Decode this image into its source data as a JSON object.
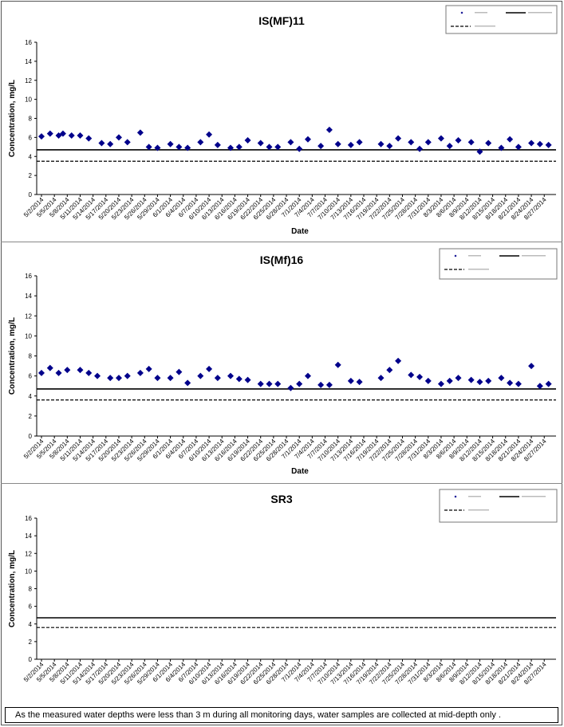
{
  "chart_data": [
    {
      "type": "scatter",
      "title": "IS(MF)11",
      "xlabel": "Date",
      "ylabel": "Concentration, mg/L",
      "ylim": [
        0,
        16
      ],
      "yticks": [
        0,
        2,
        4,
        6,
        8,
        10,
        12,
        14,
        16
      ],
      "x_tick_labels": [
        "5/2/2014",
        "5/5/2014",
        "5/8/2014",
        "5/11/2014",
        "5/14/2014",
        "5/17/2014",
        "5/20/2014",
        "5/23/2014",
        "5/26/2014",
        "5/29/2014",
        "6/1/2014",
        "6/4/2014",
        "6/7/2014",
        "6/10/2014",
        "6/13/2014",
        "6/16/2014",
        "6/19/2014",
        "6/22/2014",
        "6/25/2014",
        "6/28/2014",
        "7/1/2014",
        "7/4/2014",
        "7/7/2014",
        "7/10/2014",
        "7/13/2014",
        "7/16/2014",
        "7/19/2014",
        "7/22/2014",
        "7/25/2014",
        "7/28/2014",
        "7/31/2014",
        "8/3/2014",
        "8/6/2014",
        "8/9/2014",
        "8/12/2014",
        "8/15/2014",
        "8/18/2014",
        "8/21/2014",
        "8/24/2014",
        "8/27/2014"
      ],
      "grid": false,
      "legend_position": "top-right",
      "series": [
        {
          "type": "scatter",
          "marker": "diamond",
          "color": "#00008B",
          "x": [
            "5/2/2014",
            "5/4/2014",
            "5/6/2014",
            "5/7/2014",
            "5/9/2014",
            "5/11/2014",
            "5/13/2014",
            "5/16/2014",
            "5/18/2014",
            "5/20/2014",
            "5/22/2014",
            "5/25/2014",
            "5/27/2014",
            "5/29/2014",
            "6/1/2014",
            "6/3/2014",
            "6/5/2014",
            "6/8/2014",
            "6/10/2014",
            "6/12/2014",
            "6/15/2014",
            "6/17/2014",
            "6/19/2014",
            "6/22/2014",
            "6/24/2014",
            "6/26/2014",
            "6/29/2014",
            "7/1/2014",
            "7/3/2014",
            "7/6/2014",
            "7/8/2014",
            "7/10/2014",
            "7/13/2014",
            "7/15/2014",
            "7/20/2014",
            "7/22/2014",
            "7/24/2014",
            "7/27/2014",
            "7/29/2014",
            "7/31/2014",
            "8/3/2014",
            "8/5/2014",
            "8/7/2014",
            "8/10/2014",
            "8/12/2014",
            "8/14/2014",
            "8/17/2014",
            "8/19/2014",
            "8/21/2014",
            "8/24/2014",
            "8/26/2014",
            "8/28/2014"
          ],
          "y": [
            6.1,
            6.4,
            6.2,
            6.4,
            6.2,
            6.2,
            5.9,
            5.4,
            5.3,
            6.0,
            5.5,
            6.5,
            5.0,
            4.9,
            5.3,
            5.0,
            4.9,
            5.5,
            6.3,
            5.2,
            4.9,
            5.0,
            5.7,
            5.4,
            5.0,
            5.0,
            5.5,
            4.8,
            5.8,
            5.1,
            6.8,
            5.3,
            5.2,
            5.5,
            5.3,
            5.1,
            5.9,
            5.5,
            4.8,
            5.5,
            5.9,
            5.1,
            5.7,
            5.5,
            4.5,
            5.4,
            4.9,
            5.8,
            5.0,
            5.4,
            5.3,
            5.2
          ]
        },
        {
          "type": "line",
          "style": "solid",
          "color": "#000000",
          "y": 4.7
        },
        {
          "type": "line",
          "style": "dashed",
          "color": "#000000",
          "y": 3.5
        }
      ]
    },
    {
      "type": "scatter",
      "title": "IS(Mf)16",
      "xlabel": "Date",
      "ylabel": "Concentration, mg/L",
      "ylim": [
        0,
        16
      ],
      "yticks": [
        0,
        2,
        4,
        6,
        8,
        10,
        12,
        14,
        16
      ],
      "x_tick_labels": [
        "5/2/2014",
        "5/5/2014",
        "5/8/2014",
        "5/11/2014",
        "5/14/2014",
        "5/17/2014",
        "5/20/2014",
        "5/23/2014",
        "5/26/2014",
        "5/29/2014",
        "6/1/2014",
        "6/4/2014",
        "6/7/2014",
        "6/10/2014",
        "6/13/2014",
        "6/16/2014",
        "6/19/2014",
        "6/22/2014",
        "6/25/2014",
        "6/28/2014",
        "7/1/2014",
        "7/4/2014",
        "7/7/2014",
        "7/10/2014",
        "7/13/2014",
        "7/16/2014",
        "7/19/2014",
        "7/22/2014",
        "7/25/2014",
        "7/28/2014",
        "7/31/2014",
        "8/3/2014",
        "8/6/2014",
        "8/9/2014",
        "8/12/2014",
        "8/15/2014",
        "8/18/2014",
        "8/21/2014",
        "8/24/2014",
        "8/27/2014"
      ],
      "grid": false,
      "legend_position": "top-right",
      "series": [
        {
          "type": "scatter",
          "marker": "diamond",
          "color": "#00008B",
          "x": [
            "5/2/2014",
            "5/4/2014",
            "5/6/2014",
            "5/8/2014",
            "5/11/2014",
            "5/13/2014",
            "5/15/2014",
            "5/18/2014",
            "5/20/2014",
            "5/22/2014",
            "5/25/2014",
            "5/27/2014",
            "5/29/2014",
            "6/1/2014",
            "6/3/2014",
            "6/5/2014",
            "6/8/2014",
            "6/10/2014",
            "6/12/2014",
            "6/15/2014",
            "6/17/2014",
            "6/19/2014",
            "6/22/2014",
            "6/24/2014",
            "6/26/2014",
            "6/29/2014",
            "7/1/2014",
            "7/3/2014",
            "7/6/2014",
            "7/8/2014",
            "7/10/2014",
            "7/13/2014",
            "7/15/2014",
            "7/20/2014",
            "7/22/2014",
            "7/24/2014",
            "7/27/2014",
            "7/29/2014",
            "7/31/2014",
            "8/3/2014",
            "8/5/2014",
            "8/7/2014",
            "8/10/2014",
            "8/12/2014",
            "8/14/2014",
            "8/17/2014",
            "8/19/2014",
            "8/21/2014",
            "8/24/2014",
            "8/26/2014",
            "8/28/2014"
          ],
          "y": [
            6.3,
            6.8,
            6.3,
            6.6,
            6.6,
            6.3,
            6.0,
            5.8,
            5.8,
            6.0,
            6.3,
            6.7,
            5.8,
            5.8,
            6.4,
            5.3,
            6.0,
            6.7,
            5.8,
            6.0,
            5.7,
            5.6,
            5.2,
            5.2,
            5.2,
            4.8,
            5.2,
            6.0,
            5.1,
            5.1,
            7.1,
            5.5,
            5.4,
            5.8,
            6.6,
            7.5,
            6.1,
            5.9,
            5.5,
            5.2,
            5.5,
            5.8,
            5.6,
            5.4,
            5.5,
            5.8,
            5.3,
            5.2,
            7.0,
            5.0,
            5.2
          ]
        },
        {
          "type": "line",
          "style": "solid",
          "color": "#000000",
          "y": 4.7
        },
        {
          "type": "line",
          "style": "dashed",
          "color": "#000000",
          "y": 3.6
        }
      ]
    },
    {
      "type": "scatter",
      "title": "SR3",
      "xlabel": "",
      "ylabel": "Concentration, mg/L",
      "ylim": [
        0,
        16
      ],
      "yticks": [
        0,
        2,
        4,
        6,
        8,
        10,
        12,
        14,
        16
      ],
      "x_tick_labels": [
        "5/2/2014",
        "5/5/2014",
        "5/8/2014",
        "5/11/2014",
        "5/14/2014",
        "5/17/2014",
        "5/20/2014",
        "5/23/2014",
        "5/26/2014",
        "5/29/2014",
        "6/1/2014",
        "6/4/2014",
        "6/7/2014",
        "6/10/2014",
        "6/13/2014",
        "6/16/2014",
        "6/19/2014",
        "6/22/2014",
        "6/25/2014",
        "6/28/2014",
        "7/1/2014",
        "7/4/2014",
        "7/7/2014",
        "7/10/2014",
        "7/13/2014",
        "7/16/2014",
        "7/19/2014",
        "7/22/2014",
        "7/25/2014",
        "7/28/2014",
        "7/31/2014",
        "8/3/2014",
        "8/6/2014",
        "8/9/2014",
        "8/12/2014",
        "8/15/2014",
        "8/18/2014",
        "8/21/2014",
        "8/24/2014",
        "8/27/2014"
      ],
      "grid": false,
      "legend_position": "top-right",
      "series": [
        {
          "type": "scatter",
          "marker": "diamond",
          "color": "#00008B",
          "x": [],
          "y": []
        },
        {
          "type": "line",
          "style": "solid",
          "color": "#000000",
          "y": 4.7
        },
        {
          "type": "line",
          "style": "dashed",
          "color": "#000000",
          "y": 3.6
        }
      ]
    }
  ],
  "footnote": "As the measured water depths were less than 3 m during all monitoring days, water samples are collected  at mid-depth only ."
}
